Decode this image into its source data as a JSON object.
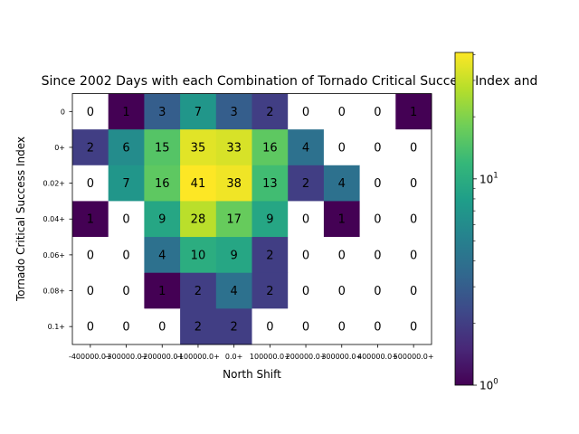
{
  "chart_data": {
    "type": "heatmap",
    "title": "Since 2002 Days with each Combination of Tornado Critical Success Index and",
    "xlabel": "North Shift",
    "ylabel": "Tornado Critical Success Index",
    "x_categories": [
      "-400000.0+",
      "-300000.0+",
      "-200000.0+",
      "-100000.0+",
      "0.0+",
      "100000.0+",
      "200000.0+",
      "300000.0+",
      "400000.0+",
      "500000.0+"
    ],
    "y_categories": [
      "0",
      "0+",
      "0.02+",
      "0.04+",
      "0.06+",
      "0.08+",
      "0.1+"
    ],
    "values": [
      [
        0,
        1,
        3,
        7,
        3,
        2,
        0,
        0,
        0,
        1
      ],
      [
        2,
        6,
        15,
        35,
        33,
        16,
        4,
        0,
        0,
        0
      ],
      [
        0,
        7,
        16,
        41,
        38,
        13,
        2,
        4,
        0,
        0
      ],
      [
        1,
        0,
        9,
        28,
        17,
        9,
        0,
        1,
        0,
        0
      ],
      [
        0,
        0,
        4,
        10,
        9,
        2,
        0,
        0,
        0,
        0
      ],
      [
        0,
        0,
        1,
        2,
        4,
        2,
        0,
        0,
        0,
        0
      ],
      [
        0,
        0,
        0,
        2,
        2,
        0,
        0,
        0,
        0,
        0
      ]
    ],
    "colorscale": "viridis",
    "color_scale_type": "log",
    "colorbar": {
      "range": [
        1,
        41
      ],
      "ticks": [
        {
          "value": 1,
          "base": "10",
          "exp": "0"
        },
        {
          "value": 10,
          "base": "10",
          "exp": "1"
        }
      ]
    },
    "zero_color": "#ffffff"
  }
}
